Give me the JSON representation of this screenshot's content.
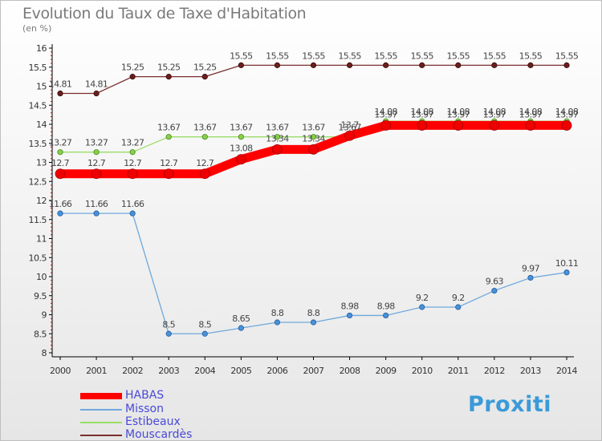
{
  "title": "Evolution du Taux de Taxe d'Habitation",
  "subtitle": "(en %)",
  "logo_text": "Proxiti",
  "chart_data": {
    "type": "line",
    "x": [
      "2000",
      "2001",
      "2002",
      "2003",
      "2004",
      "2005",
      "2006",
      "2007",
      "2008",
      "2009",
      "2010",
      "2011",
      "2012",
      "2013",
      "2014"
    ],
    "ylim": [
      8,
      16
    ],
    "yticks": [
      "8",
      "8.5",
      "9",
      "9.5",
      "10",
      "10.5",
      "11",
      "11.5",
      "12",
      "12.5",
      "13",
      "13.5",
      "14",
      "14.5",
      "15",
      "15.5",
      "16"
    ],
    "grid": false,
    "legend_position": "bottom-left",
    "series": [
      {
        "name": "HABAS",
        "color": "#ff0000",
        "values": [
          12.7,
          12.7,
          12.7,
          12.7,
          12.7,
          13.08,
          13.34,
          13.34,
          13.7,
          13.97,
          13.97,
          13.97,
          13.97,
          13.97,
          13.97
        ],
        "labels": [
          "12.7",
          "12.7",
          "12.7",
          "12.7",
          "12.7",
          "13.08",
          "13.34",
          "13.34",
          "13.7",
          "13.97",
          "13.97",
          "13.97",
          "13.97",
          "13.97",
          "13.97"
        ]
      },
      {
        "name": "Misson",
        "color": "#6fa8dc",
        "values": [
          11.66,
          11.66,
          11.66,
          8.5,
          8.5,
          8.65,
          8.8,
          8.8,
          8.98,
          8.98,
          9.2,
          9.2,
          9.63,
          9.97,
          10.11
        ],
        "labels": [
          "11.66",
          "11.66",
          "11.66",
          "8.5",
          "8.5",
          "8.65",
          "8.8",
          "8.8",
          "8.98",
          "8.98",
          "9.2",
          "9.2",
          "9.63",
          "9.97",
          "10.11"
        ]
      },
      {
        "name": "Estibeaux",
        "color": "#99dd66",
        "values": [
          13.27,
          13.27,
          13.27,
          13.67,
          13.67,
          13.67,
          13.67,
          13.67,
          13.67,
          14.08,
          14.08,
          14.08,
          14.08,
          14.08,
          14.08
        ],
        "labels": [
          "13.27",
          "13.27",
          "13.27",
          "13.67",
          "13.67",
          "13.67",
          "13.67",
          "13.67",
          "13.67",
          "14.08",
          "14.08",
          "14.08",
          "14.08",
          "14.08",
          "14.08"
        ]
      },
      {
        "name": "Mouscardès",
        "color": "#7a3030",
        "values": [
          14.81,
          14.81,
          15.25,
          15.25,
          15.25,
          15.55,
          15.55,
          15.55,
          15.55,
          15.55,
          15.55,
          15.55,
          15.55,
          15.55,
          15.55
        ],
        "labels": [
          "14.81",
          "14.81",
          "15.25",
          "15.25",
          "15.25",
          "15.55",
          "15.55",
          "15.55",
          "15.55",
          "15.55",
          "15.55",
          "15.55",
          "15.55",
          "15.55",
          "15.55"
        ]
      }
    ]
  }
}
